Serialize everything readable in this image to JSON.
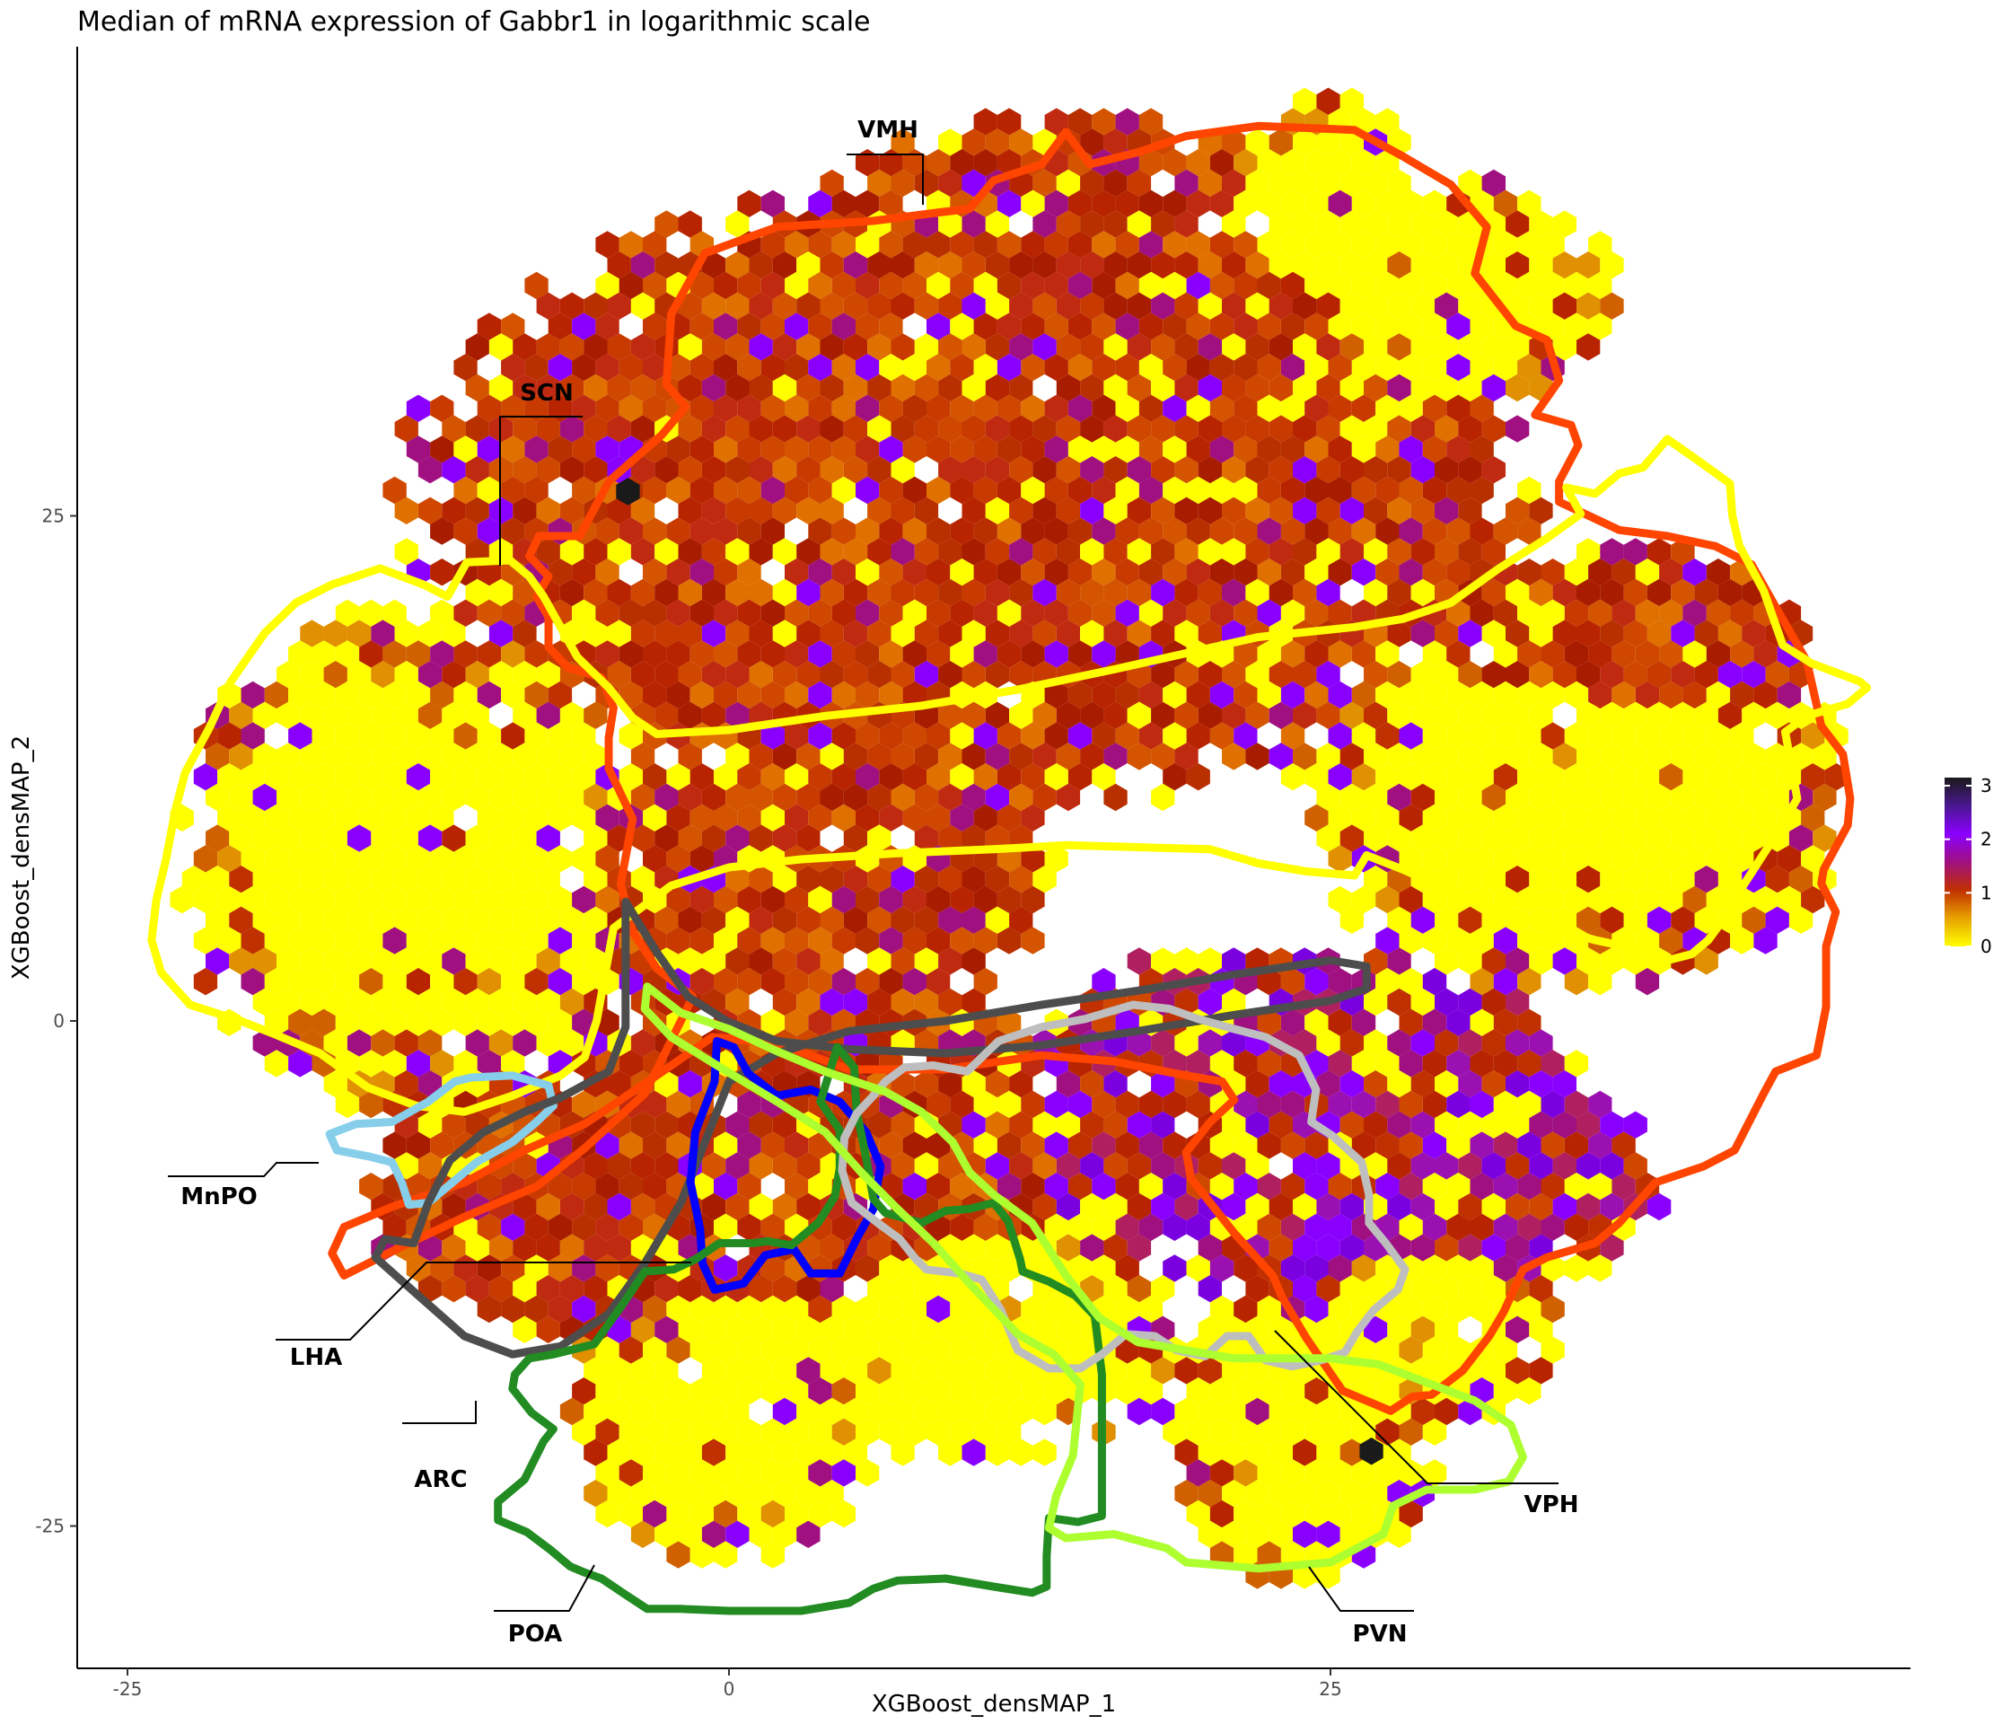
{
  "chart_data": {
    "type": "hexbin",
    "title": "Median of mRNA expression of Gabbr1 in logarithmic scale",
    "xlabel": "XGBoost_densMAP_1",
    "ylabel": "XGBoost_densMAP_2",
    "xlim": [
      -27.5,
      49.5
    ],
    "ylim": [
      -32.5,
      48.5
    ],
    "x_ticks": [
      -25,
      0,
      25
    ],
    "y_ticks": [
      -25,
      0,
      25
    ],
    "x_tick_labels": [
      "-25",
      "0",
      "25"
    ],
    "y_tick_labels": [
      "-25",
      "0",
      "25"
    ],
    "grid": false,
    "legend": {
      "position": "right",
      "ticks": [
        0,
        1,
        2,
        3
      ],
      "tick_labels": [
        "0",
        "1",
        "2",
        "3"
      ],
      "colors": [
        "#ffff00",
        "#e8a200",
        "#c03000",
        "#a01080",
        "#8a00ff",
        "#4a1890",
        "#1a1a1a"
      ]
    },
    "regions": [
      {
        "label": "VMH",
        "color": "#ff4500"
      },
      {
        "label": "SCN",
        "color": "#ffff00"
      },
      {
        "label": "MnPO",
        "color": "#87ceeb"
      },
      {
        "label": "LHA",
        "color": "#4d4d4d"
      },
      {
        "label": "ARC",
        "color": "#0000ff"
      },
      {
        "label": "POA",
        "color": "#228b22"
      },
      {
        "label": "VPH",
        "color": "#bebebe"
      },
      {
        "label": "PVN",
        "color": "#adff2f"
      }
    ]
  }
}
